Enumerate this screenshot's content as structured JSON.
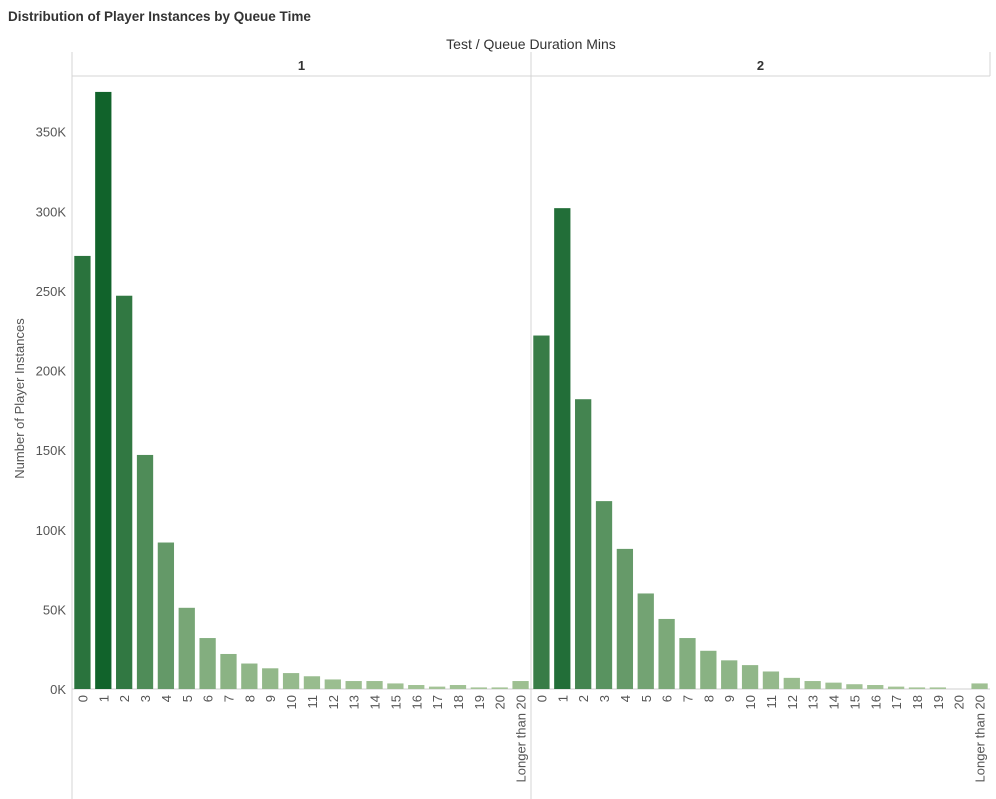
{
  "title": "Distribution of Player Instances by Queue Time",
  "header": "Test  /  Queue Duration Mins",
  "chart_data": {
    "type": "bar",
    "title": "Distribution of Player Instances by Queue Time",
    "xlabel": "Queue Duration Mins",
    "ylabel": "Number of Player Instances",
    "ylim": [
      0,
      385000
    ],
    "yticks": [
      0,
      50000,
      100000,
      150000,
      200000,
      250000,
      300000,
      350000
    ],
    "ytick_labels": [
      "0K",
      "50K",
      "100K",
      "150K",
      "200K",
      "250K",
      "300K",
      "350K"
    ],
    "categories": [
      "0",
      "1",
      "2",
      "3",
      "4",
      "5",
      "6",
      "7",
      "8",
      "9",
      "10",
      "11",
      "12",
      "13",
      "14",
      "15",
      "16",
      "17",
      "18",
      "19",
      "20",
      "Longer than 20"
    ],
    "panels": [
      {
        "name": "1",
        "values": [
          272000,
          375000,
          247000,
          147000,
          92000,
          51000,
          32000,
          22000,
          16000,
          13000,
          10000,
          8000,
          6000,
          5000,
          5000,
          3500,
          2500,
          1500,
          2500,
          1000,
          1000,
          5000
        ]
      },
      {
        "name": "2",
        "values": [
          222000,
          302000,
          182000,
          118000,
          88000,
          60000,
          44000,
          32000,
          24000,
          18000,
          15000,
          11000,
          7000,
          5000,
          4000,
          3000,
          2500,
          1500,
          1000,
          1000,
          0,
          3500
        ]
      }
    ],
    "color_scale": {
      "low": "#abc89c",
      "high": "#11632b"
    },
    "grid": false,
    "legend": "none"
  }
}
